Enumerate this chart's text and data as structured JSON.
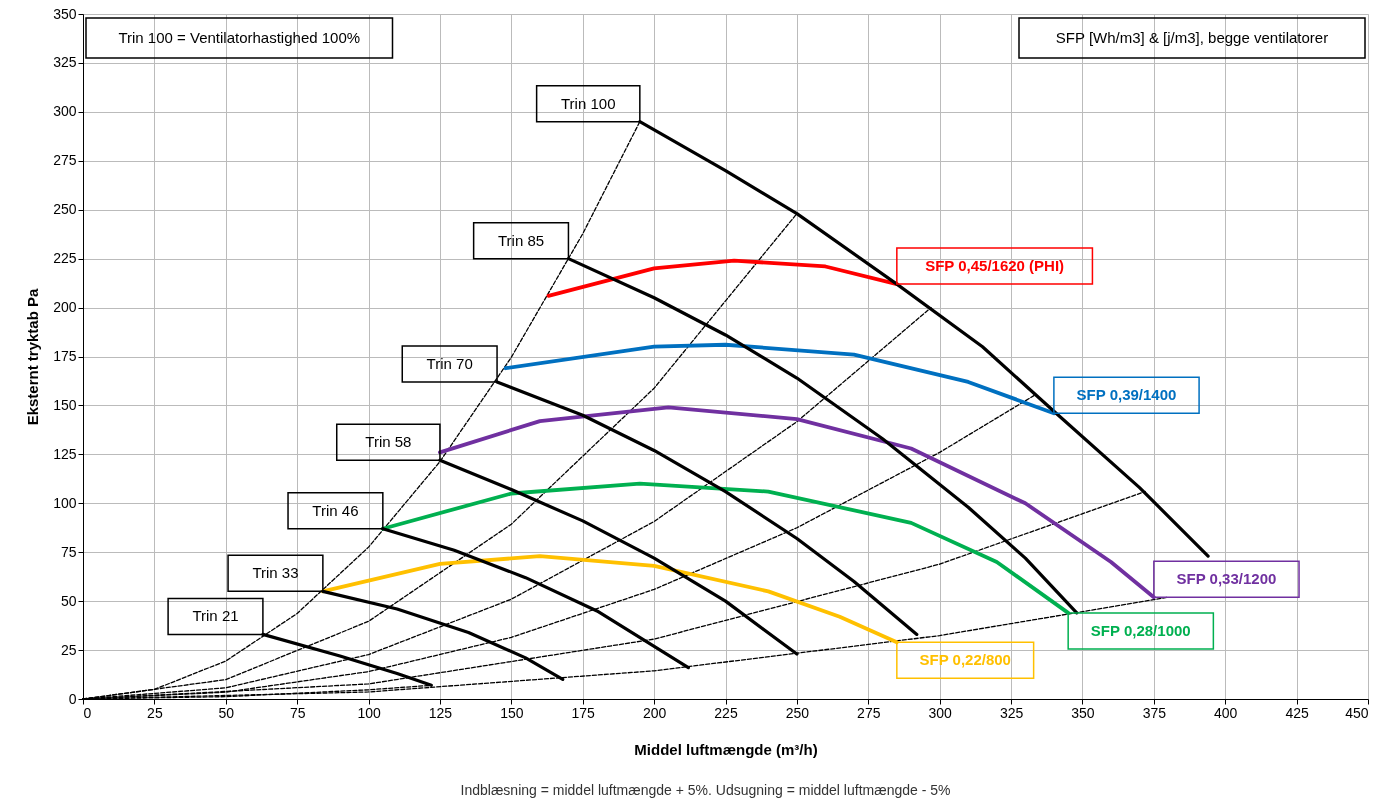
{
  "chart_data": {
    "type": "line",
    "xlabel": "Middel luftmængde (m³/h)",
    "ylabel": "Eksternt tryktab Pa",
    "xlim": [
      0,
      450
    ],
    "xticks": [
      0,
      25,
      50,
      75,
      100,
      125,
      150,
      175,
      200,
      225,
      250,
      275,
      300,
      325,
      350,
      375,
      400,
      425,
      450
    ],
    "ylim": [
      0,
      350
    ],
    "yticks": [
      0,
      25,
      50,
      75,
      100,
      125,
      150,
      175,
      200,
      225,
      250,
      275,
      300,
      325,
      350
    ],
    "grid": true,
    "marker": "none",
    "annotations": [
      "Trin 100 = Ventilatorhastighed 100%",
      "SFP [Wh/m3] & [j/m3], begge ventilatorer",
      "Indblæsning = middel luftmængde + 5%. Udsugning = middel luftmængde - 5%"
    ],
    "series": [
      {
        "color": "#000000",
        "line_style": "dashed",
        "x": [
          0,
          25,
          50,
          75,
          100,
          125,
          150,
          175,
          195
        ],
        "values": [
          0,
          4.9,
          19.4,
          43.7,
          77.6,
          121.3,
          174.6,
          237.7,
          295
        ]
      },
      {
        "color": "#000000",
        "line_style": "dashed",
        "x": [
          0,
          50,
          100,
          150,
          200,
          250
        ],
        "values": [
          0,
          9.9,
          39.7,
          89.3,
          158.8,
          248
        ]
      },
      {
        "color": "#000000",
        "line_style": "dashed",
        "x": [
          0,
          50,
          100,
          150,
          200,
          250,
          297
        ],
        "values": [
          0,
          5.7,
          22.7,
          51,
          90.7,
          141.7,
          200
        ]
      },
      {
        "color": "#000000",
        "line_style": "dashed",
        "x": [
          0,
          50,
          100,
          150,
          200,
          250,
          300,
          333
        ],
        "values": [
          0,
          3.5,
          14,
          31.5,
          56,
          87.5,
          126,
          155
        ]
      },
      {
        "color": "#000000",
        "line_style": "dashed",
        "x": [
          0,
          100,
          200,
          300,
          372
        ],
        "values": [
          0,
          7.7,
          30.6,
          68.9,
          106
        ]
      },
      {
        "color": "#000000",
        "line_style": "dashed",
        "x": [
          0,
          100,
          200,
          300,
          380
        ],
        "values": [
          0,
          3.6,
          14.4,
          32.4,
          52
        ]
      },
      {
        "color": "#000000",
        "line_style": "dashed",
        "x": [
          0,
          50,
          100,
          122
        ],
        "values": [
          0,
          1.2,
          4.7,
          7
        ]
      },
      {
        "name": "SFP 0,45/1620 (PHI)",
        "color": "#ff0000",
        "line_style": "solid",
        "x": [
          163,
          200,
          228,
          260,
          285
        ],
        "values": [
          206,
          220,
          224,
          221,
          212
        ]
      },
      {
        "name": "SFP 0,39/1400",
        "color": "#0070c0",
        "line_style": "solid",
        "x": [
          148,
          200,
          225,
          270,
          310,
          340
        ],
        "values": [
          169,
          180,
          181,
          176,
          162,
          146
        ]
      },
      {
        "name": "SFP 0,33/1200",
        "color": "#7030a0",
        "line_style": "solid",
        "x": [
          125,
          160,
          205,
          250,
          290,
          330,
          360,
          375
        ],
        "values": [
          126,
          142,
          149,
          143,
          128,
          100,
          70,
          52
        ]
      },
      {
        "name": "SFP 0,28/1000",
        "color": "#00b050",
        "line_style": "solid",
        "x": [
          105,
          150,
          195,
          240,
          290,
          320,
          345
        ],
        "values": [
          87,
          105,
          110,
          106,
          90,
          70,
          44
        ]
      },
      {
        "name": "SFP 0,22/800",
        "color": "#ffc000",
        "line_style": "solid",
        "x": [
          84,
          125,
          160,
          200,
          240,
          265,
          285
        ],
        "values": [
          55,
          69,
          73,
          68,
          55,
          42,
          29
        ]
      },
      {
        "name": "Trin 100",
        "color": "#000000",
        "line_style": "solid",
        "x": [
          195,
          225,
          250,
          285,
          315,
          340,
          370,
          394
        ],
        "values": [
          295,
          270,
          248,
          212,
          180,
          147,
          108,
          73
        ]
      },
      {
        "name": "Trin 85",
        "color": "#000000",
        "line_style": "solid",
        "x": [
          170,
          200,
          225,
          250,
          280,
          310,
          330,
          348
        ],
        "values": [
          225,
          205,
          186,
          164,
          133,
          98,
          72,
          44
        ]
      },
      {
        "name": "Trin 70",
        "color": "#000000",
        "line_style": "solid",
        "x": [
          145,
          175,
          200,
          225,
          250,
          270,
          292
        ],
        "values": [
          162,
          145,
          127,
          106,
          82,
          60,
          33
        ]
      },
      {
        "name": "Trin  58",
        "color": "#000000",
        "line_style": "solid",
        "x": [
          125,
          150,
          175,
          200,
          225,
          250
        ],
        "values": [
          122,
          107,
          91,
          72,
          50,
          23
        ]
      },
      {
        "name": "Trin 46",
        "color": "#000000",
        "line_style": "solid",
        "x": [
          105,
          130,
          155,
          180,
          212
        ],
        "values": [
          87,
          76,
          62,
          45,
          16
        ]
      },
      {
        "name": "Trin 33",
        "color": "#000000",
        "line_style": "solid",
        "x": [
          84,
          110,
          135,
          155,
          168
        ],
        "values": [
          55,
          46,
          34,
          21,
          10
        ]
      },
      {
        "name": "Trin 21",
        "color": "#000000",
        "line_style": "solid",
        "x": [
          63,
          90,
          110,
          122
        ],
        "values": [
          33,
          22,
          13,
          7
        ]
      }
    ]
  }
}
